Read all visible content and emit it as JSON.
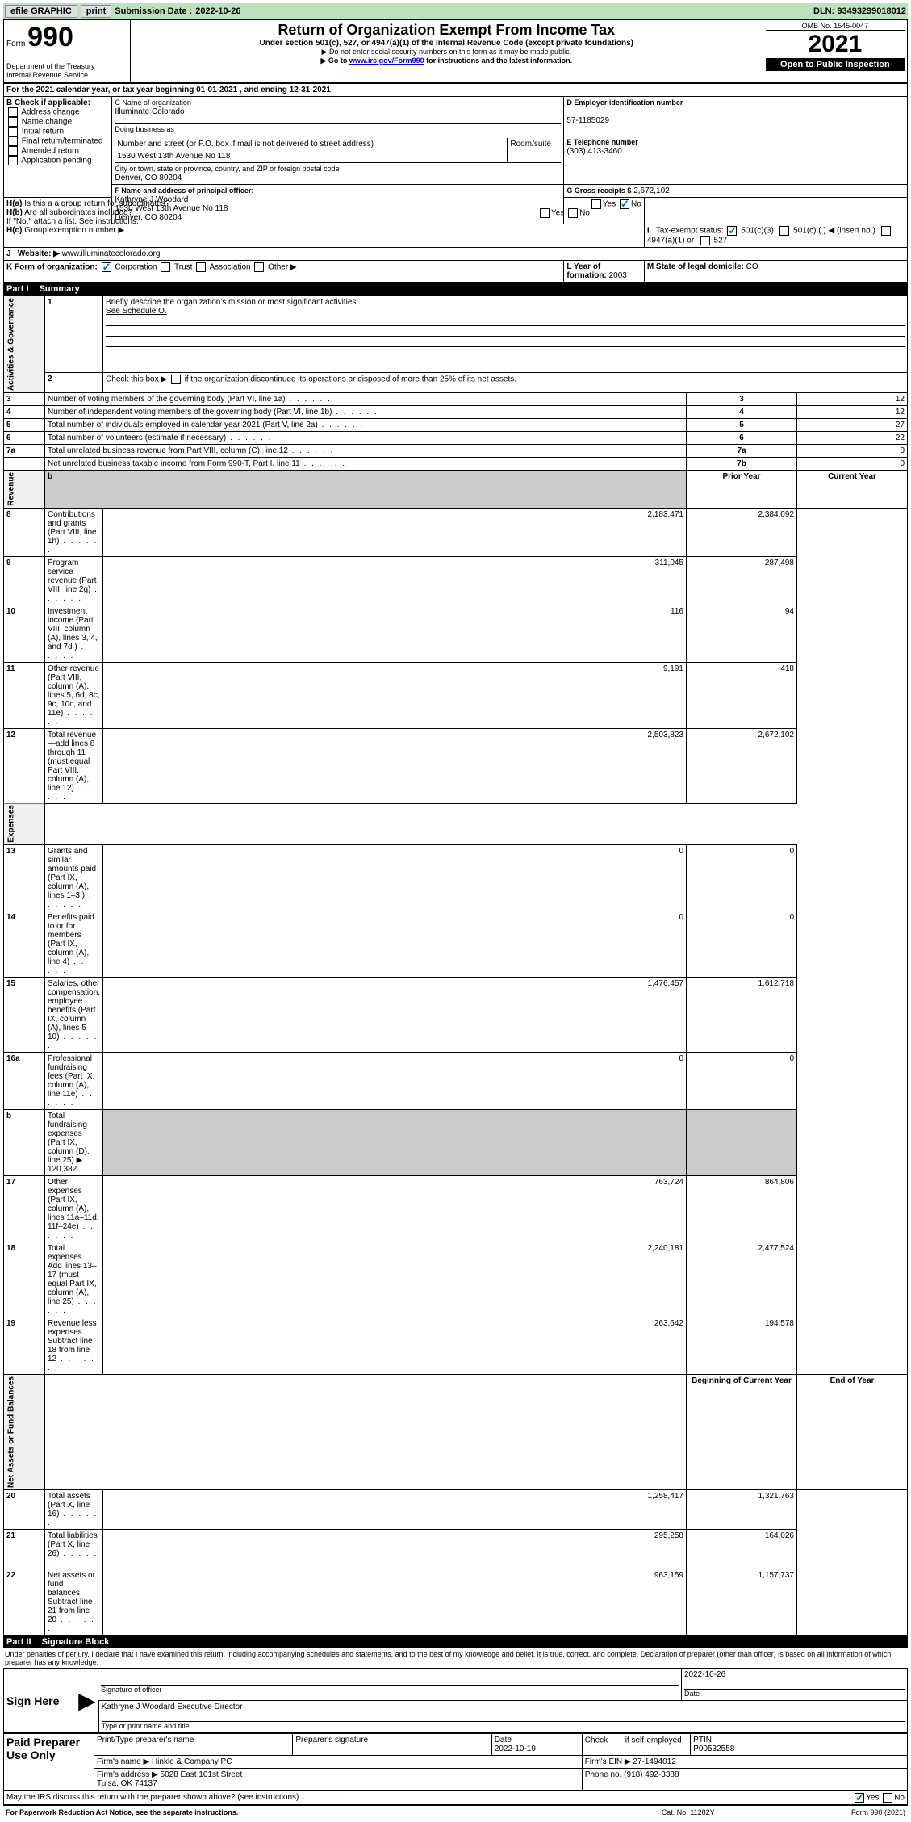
{
  "topbar": {
    "efile_label": "efile GRAPHIC",
    "print_label": "print",
    "submission_label": "Submission Date :",
    "submission_date": "2022-10-26",
    "dln_label": "DLN:",
    "dln": "93493299018012"
  },
  "header": {
    "form_label": "Form",
    "form_number": "990",
    "title": "Return of Organization Exempt From Income Tax",
    "subtitle": "Under section 501(c), 527, or 4947(a)(1) of the Internal Revenue Code (except private foundations)",
    "note1": "▶ Do not enter social security numbers on this form as it may be made public.",
    "note2_pre": "▶ Go to ",
    "note2_link": "www.irs.gov/Form990",
    "note2_post": " for instructions and the latest information.",
    "dept": "Department of the Treasury",
    "irs": "Internal Revenue Service",
    "omb": "OMB No. 1545-0047",
    "year": "2021",
    "open_public": "Open to Public Inspection"
  },
  "sectionA": {
    "line_a": "For the 2021 calendar year, or tax year beginning 01-01-2021   , and ending 12-31-2021",
    "b_label": "B Check if applicable:",
    "b_options": [
      "Address change",
      "Name change",
      "Initial return",
      "Final return/terminated",
      "Amended return",
      "Application pending"
    ],
    "c_label": "C Name of organization",
    "c_name": "Illuminate Colorado",
    "dba_label": "Doing business as",
    "addr_label": "Number and street (or P.O. box if mail is not delivered to street address)",
    "addr": "1530 West 13th Avenue No 118",
    "room_label": "Room/suite",
    "city_label": "City or town, state or province, country, and ZIP or foreign postal code",
    "city": "Denver, CO  80204",
    "d_label": "D Employer identification number",
    "d_ein": "57-1185029",
    "e_label": "E Telephone number",
    "e_phone": "(303) 413-3460",
    "g_label": "G Gross receipts $",
    "g_val": "2,672,102",
    "f_label": "F Name and address of principal officer:",
    "f_name": "Kathryne J Woodard",
    "f_addr": "1530 West 13th Avenue No 118\nDenver, CO  80204",
    "ha_label": "Is this a a group return for subordinates?",
    "ha_prefix": "H(a)",
    "hb_label": "Are all subordinates included?",
    "hb_prefix": "H(b)",
    "hb_note": "If \"No,\" attach a list. See instructions.",
    "hc_label": "Group exemption number ▶",
    "hc_prefix": "H(c)",
    "yes": "Yes",
    "no": "No",
    "i_label": "Tax-exempt status:",
    "i_501c3": "501(c)(3)",
    "i_501c": "501(c) (  ) ◀ (insert no.)",
    "i_4947": "4947(a)(1) or",
    "i_527": "527",
    "j_label": "Website: ▶",
    "j_val": "www.illuminatecolorado.org",
    "k_label": "K Form of organization:",
    "k_corp": "Corporation",
    "k_trust": "Trust",
    "k_assoc": "Association",
    "k_other": "Other ▶",
    "l_label": "L Year of formation:",
    "l_val": "2003",
    "m_label": "M State of legal domicile:",
    "m_val": "CO"
  },
  "part1": {
    "header_part": "Part I",
    "header_title": "Summary",
    "sections": {
      "governance": "Activities & Governance",
      "revenue": "Revenue",
      "expenses": "Expenses",
      "netassets": "Net Assets or Fund Balances"
    },
    "line1_label": "Briefly describe the organization's mission or most significant activities:",
    "line1_val": "See Schedule O.",
    "line2_label": "Check this box ▶",
    "line2_text": "if the organization discontinued its operations or disposed of more than 25% of its net assets.",
    "rows_gov": [
      {
        "n": "3",
        "desc": "Number of voting members of the governing body (Part VI, line 1a)",
        "box": "3",
        "val": "12"
      },
      {
        "n": "4",
        "desc": "Number of independent voting members of the governing body (Part VI, line 1b)",
        "box": "4",
        "val": "12"
      },
      {
        "n": "5",
        "desc": "Total number of individuals employed in calendar year 2021 (Part V, line 2a)",
        "box": "5",
        "val": "27"
      },
      {
        "n": "6",
        "desc": "Total number of volunteers (estimate if necessary)",
        "box": "6",
        "val": "22"
      },
      {
        "n": "7a",
        "desc": "Total unrelated business revenue from Part VIII, column (C), line 12",
        "box": "7a",
        "val": "0"
      },
      {
        "n": "",
        "desc": "Net unrelated business taxable income from Form 990-T, Part I, line 11",
        "box": "7b",
        "val": "0"
      }
    ],
    "col_prior": "Prior Year",
    "col_current": "Current Year",
    "rows_rev": [
      {
        "n": "8",
        "desc": "Contributions and grants (Part VIII, line 1h)",
        "prior": "2,183,471",
        "curr": "2,384,092"
      },
      {
        "n": "9",
        "desc": "Program service revenue (Part VIII, line 2g)",
        "prior": "311,045",
        "curr": "287,498"
      },
      {
        "n": "10",
        "desc": "Investment income (Part VIII, column (A), lines 3, 4, and 7d )",
        "prior": "116",
        "curr": "94"
      },
      {
        "n": "11",
        "desc": "Other revenue (Part VIII, column (A), lines 5, 6d, 8c, 9c, 10c, and 11e)",
        "prior": "9,191",
        "curr": "418"
      },
      {
        "n": "12",
        "desc": "Total revenue—add lines 8 through 11 (must equal Part VIII, column (A), line 12)",
        "prior": "2,503,823",
        "curr": "2,672,102"
      }
    ],
    "rows_exp": [
      {
        "n": "13",
        "desc": "Grants and similar amounts paid (Part IX, column (A), lines 1–3 )",
        "prior": "0",
        "curr": "0"
      },
      {
        "n": "14",
        "desc": "Benefits paid to or for members (Part IX, column (A), line 4)",
        "prior": "0",
        "curr": "0"
      },
      {
        "n": "15",
        "desc": "Salaries, other compensation, employee benefits (Part IX, column (A), lines 5–10)",
        "prior": "1,476,457",
        "curr": "1,612,718"
      },
      {
        "n": "16a",
        "desc": "Professional fundraising fees (Part IX, column (A), line 11e)",
        "prior": "0",
        "curr": "0"
      }
    ],
    "line16b_n": "b",
    "line16b_desc": "Total fundraising expenses (Part IX, column (D), line 25) ▶",
    "line16b_val": "120,382",
    "rows_exp2": [
      {
        "n": "17",
        "desc": "Other expenses (Part IX, column (A), lines 11a–11d, 11f–24e)",
        "prior": "763,724",
        "curr": "864,806"
      },
      {
        "n": "18",
        "desc": "Total expenses. Add lines 13–17 (must equal Part IX, column (A), line 25)",
        "prior": "2,240,181",
        "curr": "2,477,524"
      },
      {
        "n": "19",
        "desc": "Revenue less expenses. Subtract line 18 from line 12",
        "prior": "263,642",
        "curr": "194,578"
      }
    ],
    "col_begin": "Beginning of Current Year",
    "col_end": "End of Year",
    "rows_net": [
      {
        "n": "20",
        "desc": "Total assets (Part X, line 16)",
        "prior": "1,258,417",
        "curr": "1,321,763"
      },
      {
        "n": "21",
        "desc": "Total liabilities (Part X, line 26)",
        "prior": "295,258",
        "curr": "164,026"
      },
      {
        "n": "22",
        "desc": "Net assets or fund balances. Subtract line 21 from line 20",
        "prior": "963,159",
        "curr": "1,157,737"
      }
    ]
  },
  "part2": {
    "header_part": "Part II",
    "header_title": "Signature Block",
    "perjury": "Under penalties of perjury, I declare that I have examined this return, including accompanying schedules and statements, and to the best of my knowledge and belief, it is true, correct, and complete. Declaration of preparer (other than officer) is based on all information of which preparer has any knowledge.",
    "sign_here": "Sign Here",
    "sig_officer_label": "Signature of officer",
    "sig_date": "2022-10-26",
    "date_label": "Date",
    "officer_name": "Kathryne J Woodard  Executive Director",
    "officer_name_label": "Type or print name and title",
    "paid_prep": "Paid Preparer Use Only",
    "prep_name_label": "Print/Type preparer's name",
    "prep_sig_label": "Preparer's signature",
    "prep_date_label": "Date",
    "prep_date": "2022-10-19",
    "check_if_label": "Check",
    "self_emp_label": "if self-employed",
    "ptin_label": "PTIN",
    "ptin": "P00532558",
    "firm_name_label": "Firm's name    ▶",
    "firm_name": "Hinkle & Company PC",
    "firm_ein_label": "Firm's EIN ▶",
    "firm_ein": "27-1494012",
    "firm_addr_label": "Firm's address ▶",
    "firm_addr": "5028 East 101st Street\nTulsa, OK  74137",
    "firm_phone_label": "Phone no.",
    "firm_phone": "(918) 492-3388",
    "may_discuss": "May the IRS discuss this return with the preparer shown above? (see instructions)",
    "paperwork": "For Paperwork Reduction Act Notice, see the separate instructions.",
    "cat": "Cat. No. 11282Y",
    "form_ref": "Form 990 (2021)"
  }
}
